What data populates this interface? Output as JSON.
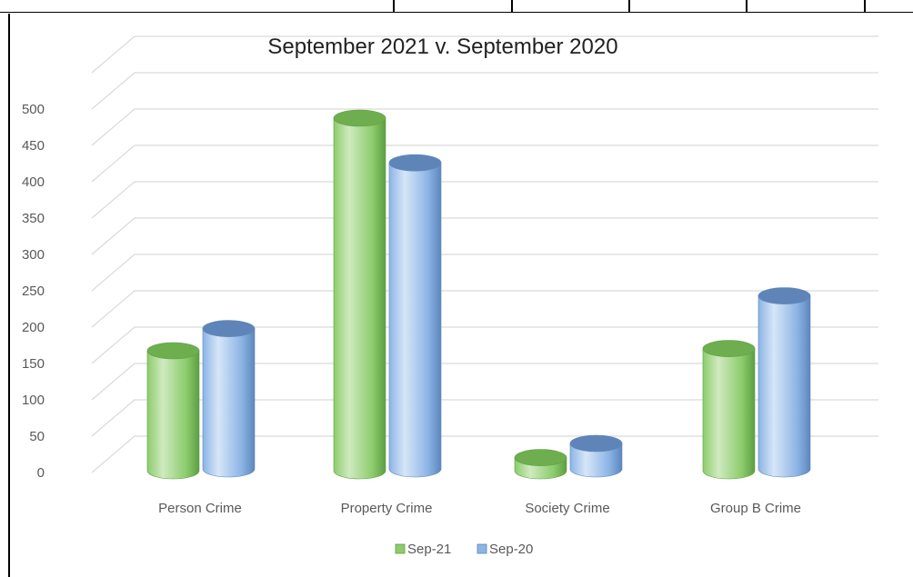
{
  "chart_data": {
    "type": "bar",
    "title": "September 2021 v. September 2020",
    "categories": [
      "Person Crime",
      "Property Crime",
      "Society Crime",
      "Group B Crime"
    ],
    "series": [
      {
        "name": "Sep-21",
        "values": [
          165,
          485,
          18,
          168
        ],
        "color": "#8ccc6c"
      },
      {
        "name": "Sep-20",
        "values": [
          193,
          421,
          35,
          238
        ],
        "color": "#8cb4e4"
      }
    ],
    "yticks": [
      0,
      50,
      100,
      150,
      200,
      250,
      300,
      350,
      400,
      450,
      500
    ],
    "ylim": [
      0,
      550
    ],
    "grid": true,
    "legend_position": "bottom",
    "style": "3d-cylinder"
  }
}
